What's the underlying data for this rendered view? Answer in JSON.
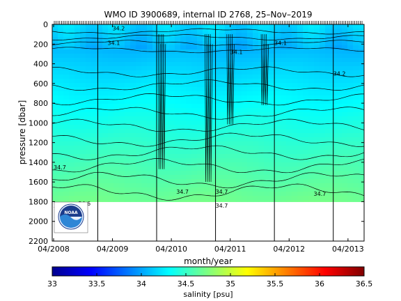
{
  "chart_data": {
    "type": "heatmap",
    "title": "WMO ID 3900689, internal ID 2768, 25–Nov–2019",
    "xlabel": "month/year",
    "ylabel": "pressure [dbar]",
    "colorbar_label": "salinity [psu]",
    "x_tick_labels": [
      "04/2008",
      "04/2009",
      "04/2010",
      "04/2011",
      "04/2012",
      "04/2013"
    ],
    "y_tick_labels": [
      "0",
      "200",
      "400",
      "600",
      "800",
      "1000",
      "1200",
      "1400",
      "1600",
      "1800",
      "2000",
      "2200"
    ],
    "y_tick_values": [
      0,
      200,
      400,
      600,
      800,
      1000,
      1200,
      1400,
      1600,
      1800,
      2000,
      2200
    ],
    "ylim": [
      0,
      2200
    ],
    "y_reversed": true,
    "x_range": [
      "2008-04",
      "2013-07"
    ],
    "color_scale": {
      "min": 33,
      "max": 36.5,
      "tick_labels": [
        "33",
        "33.5",
        "34",
        "34.5",
        "35",
        "35.5",
        "36",
        "36.5"
      ],
      "tick_values": [
        33,
        33.5,
        34,
        34.5,
        35,
        35.5,
        36,
        36.5
      ],
      "colormap": "jet"
    },
    "year_boundaries": [
      "2009-01",
      "2010-01",
      "2011-01",
      "2012-01",
      "2013-01"
    ],
    "data_max_pressure": 1800,
    "contour_labels": [
      {
        "text": "34.2",
        "date": "2009-04",
        "pressure": 60
      },
      {
        "text": "34.1",
        "date": "2009-03",
        "pressure": 210
      },
      {
        "text": "34.1",
        "date": "2011-04",
        "pressure": 300
      },
      {
        "text": "34.1",
        "date": "2012-01",
        "pressure": 210
      },
      {
        "text": "34.2",
        "date": "2013-01",
        "pressure": 520
      },
      {
        "text": "34.7",
        "date": "2008-04",
        "pressure": 1470
      },
      {
        "text": "34.7",
        "date": "2010-05",
        "pressure": 1720
      },
      {
        "text": "34.7",
        "date": "2011-01",
        "pressure": 1720
      },
      {
        "text": "34.7",
        "date": "2012-09",
        "pressure": 1740
      },
      {
        "text": "34.7",
        "date": "2011-01",
        "pressure": 1860
      },
      {
        "text": "34.6",
        "date": "2008-09",
        "pressure": 1840
      },
      {
        "text": "34.6",
        "date": "2008-04",
        "pressure": 1860
      }
    ],
    "grid": false,
    "logo": "NOAA"
  }
}
